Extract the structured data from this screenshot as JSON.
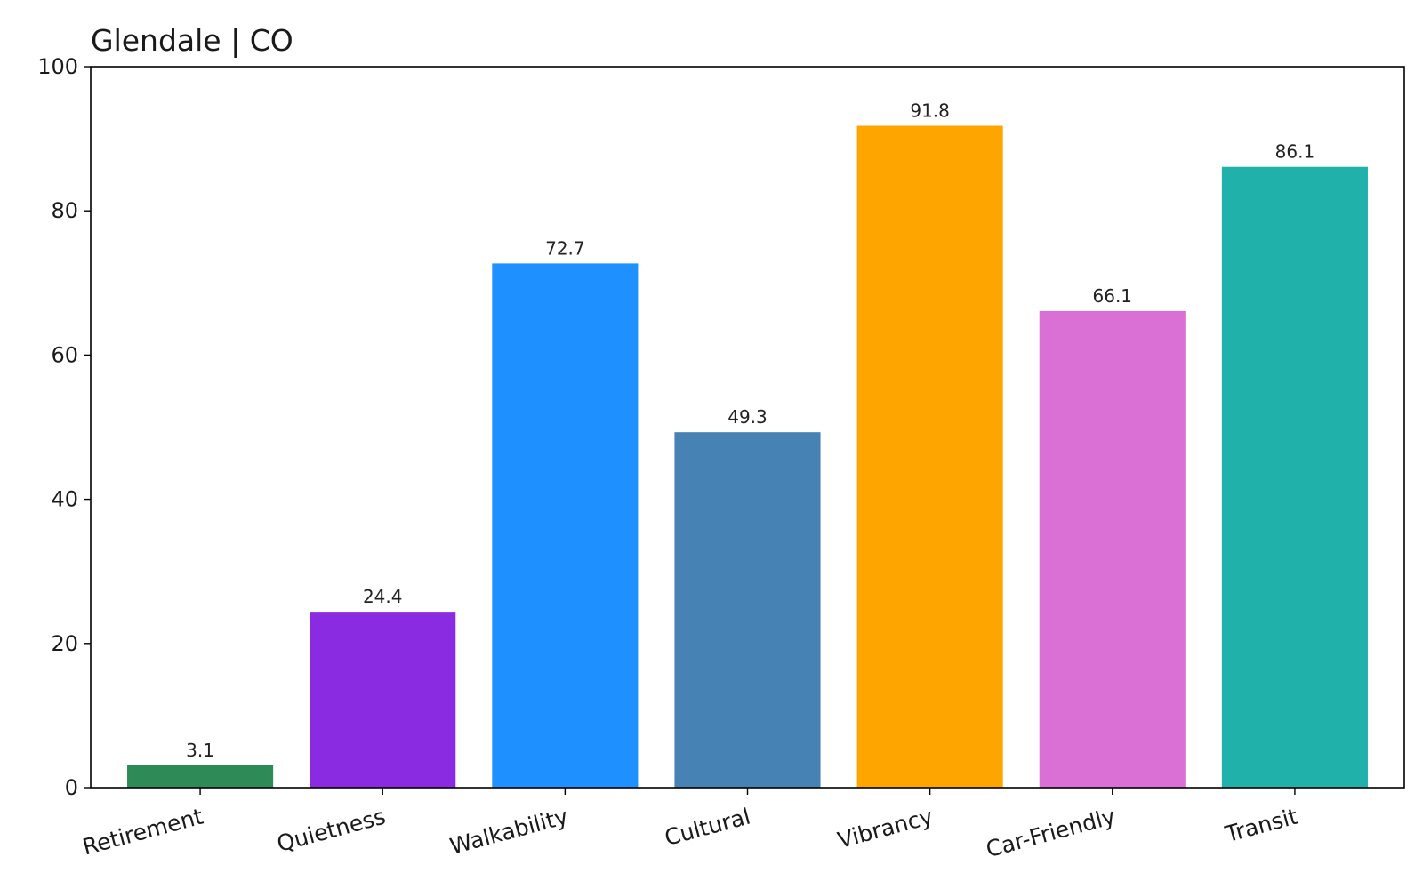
{
  "chart_data": {
    "type": "bar",
    "title": "Glendale | CO",
    "xlabel": "",
    "ylabel": "",
    "categories": [
      "Retirement",
      "Quietness",
      "Walkability",
      "Cultural",
      "Vibrancy",
      "Car-Friendly",
      "Transit"
    ],
    "values": [
      3.1,
      24.4,
      72.7,
      49.3,
      91.8,
      66.1,
      86.1
    ],
    "data_labels": [
      "3.1",
      "24.4",
      "72.7",
      "49.3",
      "91.8",
      "66.1",
      "86.1"
    ],
    "colors": [
      "#2e8b57",
      "#8a2be2",
      "#1e90ff",
      "#4682b4",
      "#ffa500",
      "#da70d6",
      "#20b2aa"
    ],
    "ylim": [
      0,
      100
    ],
    "yticks": [
      0,
      20,
      40,
      60,
      80,
      100
    ],
    "ytick_labels": [
      "0",
      "20",
      "40",
      "60",
      "80",
      "100"
    ],
    "grid": false,
    "legend": "none"
  }
}
